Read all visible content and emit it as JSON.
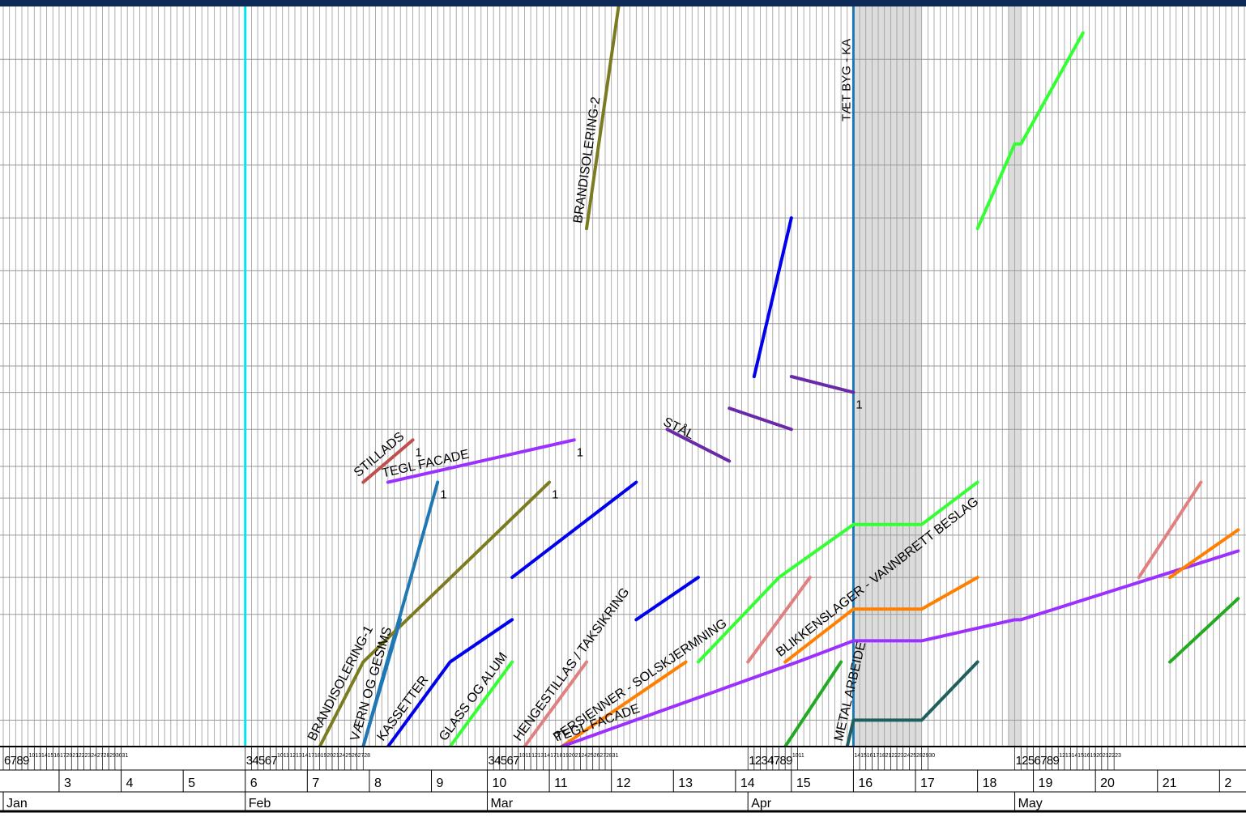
{
  "page": {
    "title": "",
    "border_color": "#0e2a58"
  },
  "chart_data": {
    "type": "line",
    "title": "",
    "xlabel": "",
    "ylabel": "",
    "grid": true,
    "x_units": "work day index (0 = first visible day, early January)",
    "months": [
      {
        "label": "Jan",
        "start": 0
      },
      {
        "label": "Feb",
        "start": 39
      },
      {
        "label": "Mar",
        "start": 78
      },
      {
        "label": "Apr",
        "start": 120
      },
      {
        "label": "May",
        "start": 163
      }
    ],
    "weeks": [
      {
        "label": "3",
        "start": 9
      },
      {
        "label": "4",
        "start": 19
      },
      {
        "label": "5",
        "start": 29
      },
      {
        "label": "6",
        "start": 39
      },
      {
        "label": "7",
        "start": 49
      },
      {
        "label": "8",
        "start": 59
      },
      {
        "label": "9",
        "start": 69
      },
      {
        "label": "10",
        "start": 78
      },
      {
        "label": "11",
        "start": 88
      },
      {
        "label": "12",
        "start": 98
      },
      {
        "label": "13",
        "start": 108
      },
      {
        "label": "14",
        "start": 118
      },
      {
        "label": "15",
        "start": 127
      },
      {
        "label": "16",
        "start": 137
      },
      {
        "label": "17",
        "start": 147
      },
      {
        "label": "18",
        "start": 157
      },
      {
        "label": "19",
        "start": 166
      },
      {
        "label": "20",
        "start": 176
      },
      {
        "label": "21",
        "start": 186
      },
      {
        "label": "2",
        "start": 196
      }
    ],
    "days": [
      {
        "label": "6",
        "x": 0
      },
      {
        "label": "7",
        "x": 1
      },
      {
        "label": "8",
        "x": 2
      },
      {
        "label": "9",
        "x": 3
      },
      {
        "label": "10",
        "x": 4
      },
      {
        "label": "13",
        "x": 5
      },
      {
        "label": "14",
        "x": 6
      },
      {
        "label": "15",
        "x": 7
      },
      {
        "label": "16",
        "x": 8
      },
      {
        "label": "17",
        "x": 9
      },
      {
        "label": "20",
        "x": 10
      },
      {
        "label": "21",
        "x": 11
      },
      {
        "label": "22",
        "x": 12
      },
      {
        "label": "23",
        "x": 13
      },
      {
        "label": "24",
        "x": 14
      },
      {
        "label": "27",
        "x": 15
      },
      {
        "label": "28",
        "x": 16
      },
      {
        "label": "29",
        "x": 17
      },
      {
        "label": "30",
        "x": 18
      },
      {
        "label": "31",
        "x": 19
      },
      {
        "label": "3",
        "x": 39
      },
      {
        "label": "4",
        "x": 40
      },
      {
        "label": "5",
        "x": 41
      },
      {
        "label": "6",
        "x": 42
      },
      {
        "label": "7",
        "x": 43
      },
      {
        "label": "10",
        "x": 44
      },
      {
        "label": "11",
        "x": 45
      },
      {
        "label": "12",
        "x": 46
      },
      {
        "label": "13",
        "x": 47
      },
      {
        "label": "14",
        "x": 48
      },
      {
        "label": "17",
        "x": 49
      },
      {
        "label": "18",
        "x": 50
      },
      {
        "label": "19",
        "x": 51
      },
      {
        "label": "20",
        "x": 52
      },
      {
        "label": "21",
        "x": 53
      },
      {
        "label": "24",
        "x": 54
      },
      {
        "label": "25",
        "x": 55
      },
      {
        "label": "26",
        "x": 56
      },
      {
        "label": "27",
        "x": 57
      },
      {
        "label": "28",
        "x": 58
      },
      {
        "label": "3",
        "x": 78
      },
      {
        "label": "4",
        "x": 79
      },
      {
        "label": "5",
        "x": 80
      },
      {
        "label": "6",
        "x": 81
      },
      {
        "label": "7",
        "x": 82
      },
      {
        "label": "10",
        "x": 83
      },
      {
        "label": "11",
        "x": 84
      },
      {
        "label": "12",
        "x": 85
      },
      {
        "label": "13",
        "x": 86
      },
      {
        "label": "14",
        "x": 87
      },
      {
        "label": "17",
        "x": 88
      },
      {
        "label": "18",
        "x": 89
      },
      {
        "label": "19",
        "x": 90
      },
      {
        "label": "20",
        "x": 91
      },
      {
        "label": "21",
        "x": 92
      },
      {
        "label": "24",
        "x": 93
      },
      {
        "label": "25",
        "x": 94
      },
      {
        "label": "26",
        "x": 95
      },
      {
        "label": "27",
        "x": 96
      },
      {
        "label": "28",
        "x": 97
      },
      {
        "label": "31",
        "x": 98
      },
      {
        "label": "1",
        "x": 120
      },
      {
        "label": "2",
        "x": 121
      },
      {
        "label": "3",
        "x": 122
      },
      {
        "label": "4",
        "x": 123
      },
      {
        "label": "7",
        "x": 124
      },
      {
        "label": "8",
        "x": 125
      },
      {
        "label": "9",
        "x": 126
      },
      {
        "label": "10",
        "x": 127
      },
      {
        "label": "11",
        "x": 128
      },
      {
        "label": "14",
        "x": 137
      },
      {
        "label": "15",
        "x": 138
      },
      {
        "label": "16",
        "x": 139
      },
      {
        "label": "17",
        "x": 140
      },
      {
        "label": "18",
        "x": 141
      },
      {
        "label": "21",
        "x": 142
      },
      {
        "label": "22",
        "x": 143
      },
      {
        "label": "23",
        "x": 144
      },
      {
        "label": "24",
        "x": 145
      },
      {
        "label": "25",
        "x": 146
      },
      {
        "label": "28",
        "x": 147
      },
      {
        "label": "29",
        "x": 148
      },
      {
        "label": "30",
        "x": 149
      },
      {
        "label": "1",
        "x": 163
      },
      {
        "label": "2",
        "x": 164
      },
      {
        "label": "5",
        "x": 165
      },
      {
        "label": "6",
        "x": 166
      },
      {
        "label": "7",
        "x": 167
      },
      {
        "label": "8",
        "x": 168
      },
      {
        "label": "9",
        "x": 169
      },
      {
        "label": "12",
        "x": 170
      },
      {
        "label": "13",
        "x": 171
      },
      {
        "label": "14",
        "x": 172
      },
      {
        "label": "15",
        "x": 173
      },
      {
        "label": "16",
        "x": 174
      },
      {
        "label": "19",
        "x": 175
      },
      {
        "label": "20",
        "x": 176
      },
      {
        "label": "21",
        "x": 177
      },
      {
        "label": "22",
        "x": 178
      },
      {
        "label": "23",
        "x": 179
      }
    ],
    "y_levels": 14,
    "grid_rows": [
      0.5,
      2.5,
      3.2,
      4.0,
      4.7,
      5.3,
      6.0,
      6.7,
      7.2,
      8.0,
      9.0,
      10.0,
      11.0,
      12.0,
      13.0
    ],
    "milestones": [
      {
        "name": "",
        "x": 39,
        "color": "#00e5ee",
        "label": ""
      },
      {
        "name": "TÆT BYG - KA",
        "x": 137,
        "color": "#1f78b4",
        "label": "1"
      }
    ],
    "shaded_periods": [
      {
        "from": 137,
        "to": 148,
        "color": "#dcdcdc"
      },
      {
        "from": 162,
        "to": 164,
        "color": "#dcdcdc"
      }
    ],
    "series": [
      {
        "name": "BRANDISOLERING-2",
        "color": "#7b7b22",
        "points": [
          [
            94,
            9.8
          ],
          [
            101,
            15.5
          ]
        ],
        "end_label": ""
      },
      {
        "name": "STÅL",
        "color": "#6a2aa8",
        "points": [
          [
            107,
            6.0
          ],
          [
            117,
            5.4
          ],
          [
            117,
            5.4
          ],
          [
            117,
            5.4
          ]
        ],
        "end_label": ""
      },
      {
        "name": "",
        "color": "#6a2aa8",
        "points": [
          [
            117,
            6.4
          ],
          [
            127,
            6.0
          ]
        ],
        "end_label": ""
      },
      {
        "name": "",
        "color": "#6a2aa8",
        "points": [
          [
            127,
            7.0
          ],
          [
            137,
            6.7
          ]
        ],
        "end_label": "1"
      },
      {
        "name": "",
        "color": "#0000ee",
        "points": [
          [
            121,
            7.0
          ],
          [
            127,
            10.0
          ]
        ],
        "end_label": ""
      },
      {
        "name": "STILLADS",
        "color": "#c0504d",
        "points": [
          [
            58,
            5.0
          ],
          [
            66,
            5.8
          ]
        ],
        "end_label": "1"
      },
      {
        "name": "TEGL FACADE",
        "color": "#9b30ff",
        "points": [
          [
            62,
            5.0
          ],
          [
            92,
            5.8
          ]
        ],
        "end_label": "1"
      },
      {
        "name": "",
        "color": "#1f78b4",
        "points": [
          [
            58,
            0.0
          ],
          [
            70,
            5.0
          ]
        ],
        "end_label": "1"
      },
      {
        "name": "BRANDISOLERING-1",
        "color": "#7b7b22",
        "points": [
          [
            51,
            0.0
          ],
          [
            58,
            1.6
          ],
          [
            88,
            5.0
          ]
        ],
        "end_label": "1"
      },
      {
        "name": "VÆRN OG GESIMS",
        "color": "#1f78b4",
        "points": [
          [
            58,
            0.0
          ],
          [
            64,
            2.4
          ]
        ],
        "end_label": ""
      },
      {
        "name": "KASSETTER",
        "color": "#0000ee",
        "points": [
          [
            62,
            0.0
          ],
          [
            72,
            1.6
          ],
          [
            82,
            2.4
          ]
        ],
        "end_label": ""
      },
      {
        "name": "",
        "color": "#0000ee",
        "points": [
          [
            82,
            3.2
          ],
          [
            102,
            5.0
          ]
        ],
        "end_label": ""
      },
      {
        "name": "",
        "color": "#0000ee",
        "points": [
          [
            102,
            2.4
          ],
          [
            112,
            3.2
          ]
        ],
        "end_label": ""
      },
      {
        "name": "GLASS OG ALUM",
        "color": "#33ff33",
        "points": [
          [
            72,
            0.0
          ],
          [
            82,
            1.6
          ]
        ],
        "end_label": ""
      },
      {
        "name": "HENGESTILLAS / TAKSIKRING",
        "color": "#e08080",
        "points": [
          [
            84,
            0.0
          ],
          [
            94,
            1.6
          ]
        ],
        "end_label": ""
      },
      {
        "name": "PERSIENNER - SOLSKJERMNING",
        "color": "#ff7f00",
        "points": [
          [
            90,
            0.0
          ],
          [
            110,
            1.6
          ]
        ],
        "end_label": ""
      },
      {
        "name": "",
        "color": "#33ff33",
        "points": [
          [
            112,
            1.6
          ],
          [
            125,
            3.2
          ],
          [
            137,
            4.2
          ],
          [
            148,
            4.2
          ],
          [
            157,
            5.0
          ]
        ],
        "end_label": ""
      },
      {
        "name": "",
        "color": "#e08080",
        "points": [
          [
            120,
            1.6
          ],
          [
            130,
            3.2
          ]
        ],
        "end_label": ""
      },
      {
        "name": "TEGL FACADE",
        "color": "#9b30ff",
        "points": [
          [
            90,
            0.0
          ],
          [
            128,
            1.6
          ],
          [
            137,
            2.0
          ],
          [
            148,
            2.0
          ],
          [
            163,
            2.4
          ],
          [
            164,
            2.4
          ],
          [
            199,
            3.7
          ]
        ],
        "end_label": ""
      },
      {
        "name": "BLIKKENSLAGER - VANNBRETT BESLAG",
        "color": "#ff7f00",
        "points": [
          [
            126,
            1.6
          ],
          [
            137,
            2.6
          ],
          [
            148,
            2.6
          ],
          [
            157,
            3.2
          ]
        ],
        "end_label": ""
      },
      {
        "name": "",
        "color": "#22aa22",
        "points": [
          [
            126,
            0.0
          ],
          [
            135,
            1.6
          ]
        ],
        "end_label": ""
      },
      {
        "name": "METAL ARBEIDE",
        "color": "#1f5f5f",
        "points": [
          [
            136,
            0.0
          ],
          [
            137,
            0.5
          ],
          [
            148,
            0.5
          ],
          [
            157,
            1.6
          ]
        ],
        "end_label": ""
      },
      {
        "name": "",
        "color": "#33ff33",
        "points": [
          [
            157,
            9.8
          ],
          [
            163,
            11.4
          ],
          [
            164,
            11.4
          ],
          [
            174,
            13.5
          ]
        ],
        "end_label": ""
      },
      {
        "name": "",
        "color": "#e08080",
        "points": [
          [
            183,
            3.2
          ],
          [
            193,
            5.0
          ]
        ],
        "end_label": ""
      },
      {
        "name": "",
        "color": "#ff7f00",
        "points": [
          [
            188,
            3.2
          ],
          [
            199,
            4.1
          ]
        ],
        "end_label": ""
      },
      {
        "name": "",
        "color": "#22aa22",
        "points": [
          [
            188,
            1.6
          ],
          [
            199,
            2.8
          ]
        ],
        "end_label": ""
      }
    ],
    "annotations": [
      {
        "text": "BRANDISOLERING-2",
        "series": 0
      },
      {
        "text": "STÅL",
        "series": 1
      },
      {
        "text": "STILLADS",
        "series": 5
      },
      {
        "text": "TEGL FACADE",
        "series": 6
      },
      {
        "text": "BRANDISOLERING-1",
        "series": 8
      },
      {
        "text": "VÆRN OG GESIMS",
        "series": 9
      },
      {
        "text": "KASSETTER",
        "series": 10
      },
      {
        "text": "GLASS OG ALUM",
        "series": 13
      },
      {
        "text": "HENGESTILLAS / TAKSIKRING",
        "series": 14
      },
      {
        "text": "PERSIENNER - SOLSKJERMNING",
        "series": 15
      },
      {
        "text": "TEGL FACADE",
        "series": 18
      },
      {
        "text": "BLIKKENSLAGER - VANNBRETT BESLAG",
        "series": 19
      },
      {
        "text": "METAL ARBEIDE",
        "series": 21
      }
    ]
  }
}
